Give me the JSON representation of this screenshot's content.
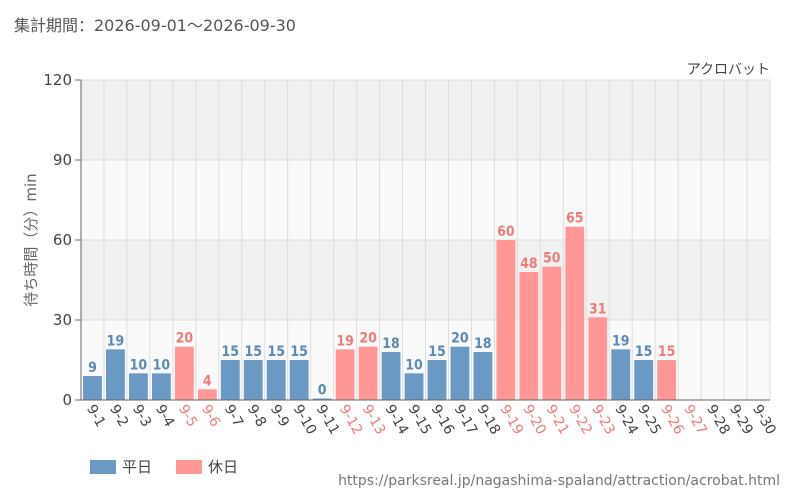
{
  "header": {
    "period_label": "集計期間：2026-09-01～2026-09-30"
  },
  "footer": {
    "source_url": "https://parksreal.jp/nagashima-spaland/attraction/acrobat.html"
  },
  "colors": {
    "weekday": "#6a9ac4",
    "weekday_text": "#5b8ab5",
    "holiday": "#ff9797",
    "holiday_text": "#f07b7b",
    "band": "#f1f1f1",
    "grid": "#dddddd",
    "axis": "#666666"
  },
  "chart_data": {
    "type": "bar",
    "title": "アクロバット",
    "ylabel": "待ち時間（分）min",
    "xlabel": "",
    "ylim": [
      0,
      120
    ],
    "yticks": [
      0,
      30,
      60,
      90,
      120
    ],
    "grid": true,
    "legend": [
      {
        "label": "平日",
        "kind": "weekday"
      },
      {
        "label": "休日",
        "kind": "holiday"
      }
    ],
    "categories": [
      "9-1",
      "9-2",
      "9-3",
      "9-4",
      "9-5",
      "9-6",
      "9-7",
      "9-8",
      "9-9",
      "9-10",
      "9-11",
      "9-12",
      "9-13",
      "9-14",
      "9-15",
      "9-16",
      "9-17",
      "9-18",
      "9-19",
      "9-20",
      "9-21",
      "9-22",
      "9-23",
      "9-24",
      "9-25",
      "9-26",
      "9-27",
      "9-28",
      "9-29",
      "9-30"
    ],
    "values": [
      9,
      19,
      10,
      10,
      20,
      4,
      15,
      15,
      15,
      15,
      0,
      19,
      20,
      18,
      10,
      15,
      20,
      18,
      60,
      48,
      50,
      65,
      31,
      19,
      15,
      15,
      null,
      null,
      null,
      null
    ],
    "day_type": [
      "weekday",
      "weekday",
      "weekday",
      "weekday",
      "holiday",
      "holiday",
      "weekday",
      "weekday",
      "weekday",
      "weekday",
      "weekday",
      "holiday",
      "holiday",
      "weekday",
      "weekday",
      "weekday",
      "weekday",
      "weekday",
      "holiday",
      "holiday",
      "holiday",
      "holiday",
      "holiday",
      "weekday",
      "weekday",
      "holiday",
      "holiday",
      "weekday",
      "weekday",
      "weekday"
    ]
  }
}
